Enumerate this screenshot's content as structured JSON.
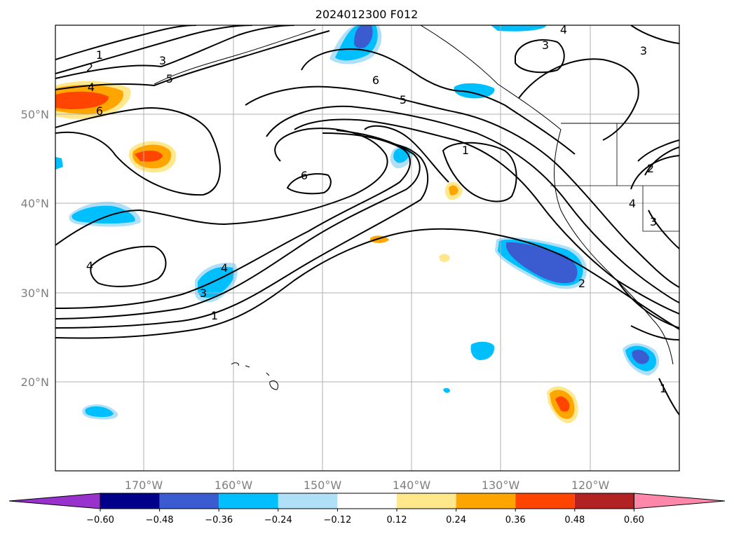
{
  "title": "2024012300 F012",
  "lat_labels": [
    "50°N",
    "40°N",
    "30°N",
    "20°N"
  ],
  "lon_labels": [
    "170°W",
    "160°W",
    "150°W",
    "140°W",
    "130°W",
    "120°W"
  ],
  "colorbar": {
    "ticks": [
      "−0.60",
      "−0.48",
      "−0.36",
      "−0.24",
      "−0.12",
      "0.12",
      "0.24",
      "0.36",
      "0.48",
      "0.60"
    ],
    "colors": [
      "#9932cc",
      "#00008b",
      "#3b5bd1",
      "#00bfff",
      "#b0e0f8",
      "#ffffff",
      "#ffe88c",
      "#ffa500",
      "#ff4500",
      "#b22222",
      "#ff88aa"
    ]
  },
  "contour_labels": [
    {
      "text": "1"
    },
    {
      "text": "2"
    },
    {
      "text": "3"
    },
    {
      "text": "4"
    },
    {
      "text": "5"
    },
    {
      "text": "6"
    },
    {
      "text": "6"
    },
    {
      "text": "5"
    },
    {
      "text": "1"
    },
    {
      "text": "6"
    },
    {
      "text": "4"
    },
    {
      "text": "4"
    },
    {
      "text": "3"
    },
    {
      "text": "1"
    },
    {
      "text": "3"
    },
    {
      "text": "4"
    },
    {
      "text": "3"
    },
    {
      "text": "2"
    },
    {
      "text": "4"
    },
    {
      "text": "3"
    },
    {
      "text": "2"
    },
    {
      "text": "1"
    }
  ]
}
